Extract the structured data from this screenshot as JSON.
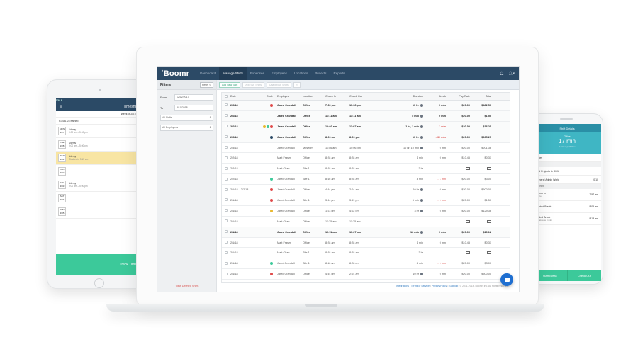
{
  "tablet": {
    "status": "iPad ●",
    "header_title": "Timesheets",
    "week_label": "Week of 2/27/2017",
    "earned": "$1,481.28 earned",
    "days": [
      {
        "day": "MON",
        "date": "2/27",
        "title": "Udemy",
        "sub": "9:00 am – 5:00 pm",
        "active": false
      },
      {
        "day": "TUE",
        "date": "2/28",
        "title": "Udemy",
        "sub": "9:00 am – 5:00 pm",
        "active": false
      },
      {
        "day": "WED",
        "date": "3/01",
        "title": "Udemy",
        "sub": "Clocked in 9:15 am",
        "active": true
      },
      {
        "day": "THU",
        "date": "3/02",
        "title": "",
        "sub": "",
        "active": false
      },
      {
        "day": "FRI",
        "date": "3/03",
        "title": "Udemy",
        "sub": "9:00 am – 5:00 pm",
        "active": false
      },
      {
        "day": "SAT",
        "date": "3/04",
        "title": "",
        "sub": "",
        "active": false
      },
      {
        "day": "SUN",
        "date": "3/05",
        "title": "",
        "sub": "",
        "active": false
      }
    ],
    "track_time": "Track Time"
  },
  "phone": {
    "header": "Shift Details",
    "hero_loc": "Office",
    "hero_value": "17 min",
    "hero_sub": "9 min of paid time",
    "notes_label": "Notes",
    "add_projects": "Add Projects to Shift",
    "project_name": "General Admin Work",
    "project_value": "0/10",
    "timeline_label": "Timeline",
    "events": [
      {
        "title": "Check In",
        "sub": "Office",
        "time": "7:57 am"
      },
      {
        "title": "Started Break",
        "sub": "",
        "time": "8:05 am"
      },
      {
        "title": "Ended Break",
        "sub": "Break was 8 min",
        "time": "8:13 am"
      }
    ],
    "start_break": "Start Break",
    "check_out": "Check Out"
  },
  "app": {
    "brand": "Boomr",
    "nav": [
      {
        "label": "Dashboard",
        "active": false
      },
      {
        "label": "Manage Shifts",
        "active": true
      },
      {
        "label": "Expenses",
        "active": false
      },
      {
        "label": "Employees",
        "active": false
      },
      {
        "label": "Locations",
        "active": false
      },
      {
        "label": "Projects",
        "active": false
      },
      {
        "label": "Reports",
        "active": false
      }
    ],
    "bell_icon": "bell-icon",
    "user_icon": "user-icon",
    "filters": {
      "label": "Filters",
      "reset": "Reset",
      "from_label": "From",
      "from_value": "12/12/2017",
      "to_label": "To",
      "to_value": "3/10/2018",
      "shifts_select": "All Shifts",
      "employees_select": "All Employees",
      "deleted_link": "View Deleted Shifts"
    },
    "toolbar": {
      "add_shift": "Add New Shift",
      "approve": "Approve Shifts",
      "unapprove": "Unapprove Shifts",
      "delete": "×"
    },
    "columns": [
      "Date",
      "Code",
      "Employee",
      "Location",
      "Check In",
      "Check Out",
      "Duration",
      "Break",
      "Pay Rate",
      "Total"
    ],
    "rows": [
      {
        "date": "2/6/18",
        "codes": [
          "#e04b4b"
        ],
        "emp": "Jared Crandall",
        "loc": "Office",
        "in": "7:30 pm",
        "out": "11:36 pm",
        "dur": "10 hr",
        "info": true,
        "brk": "0 min",
        "neg": false,
        "pay": "$20.00",
        "tot": "$482.50",
        "bold": true
      },
      {
        "date": "2/6/18",
        "codes": [],
        "emp": "Jared Crandall",
        "loc": "Office",
        "in": "11:11 am",
        "out": "11:11 am",
        "dur": "5 min",
        "info": true,
        "brk": "0 min",
        "neg": false,
        "pay": "$20.00",
        "tot": "$1.50",
        "bold": true
      },
      {
        "date": "2/6/18",
        "codes": [
          "#e8b830",
          "#3cc99a",
          "#e04b4b"
        ],
        "emp": "Jared Crandall",
        "loc": "Office",
        "in": "10:03 am",
        "out": "11:07 am",
        "dur": "1 hr, 2 min",
        "info": true,
        "brk": "- 1 min",
        "neg": true,
        "pay": "$20.00",
        "tot": "$36.25",
        "bold": true
      },
      {
        "date": "2/6/18",
        "codes": [
          "#2c4a66"
        ],
        "emp": "Jared Crandall",
        "loc": "Office",
        "in": "8:00 am",
        "out": "8:00 pm",
        "dur": "10 hr",
        "info": true,
        "brk": "- 30 min",
        "neg": true,
        "pay": "$20.00",
        "tot": "$285.25",
        "bold": true
      },
      {
        "date": "2/5/18",
        "codes": [],
        "emp": "Jared Crandall",
        "loc": "Museum",
        "in": "11:56 am",
        "out": "10:06 pm",
        "dur": "10 hr, 10 min",
        "info": true,
        "brk": "0 min",
        "neg": false,
        "pay": "$20.00",
        "tot": "$201.36",
        "bold": false
      },
      {
        "date": "2/2/18",
        "codes": [],
        "emp": "Matt Fraser",
        "loc": "Office",
        "in": "8:28 am",
        "out": "8:28 am",
        "dur": "1 min",
        "info": false,
        "brk": "0 min",
        "neg": false,
        "pay": "$10.45",
        "tot": "$0.31",
        "bold": false
      },
      {
        "date": "2/2/18",
        "codes": [],
        "emp": "Matt Chan",
        "loc": "Site 1",
        "in": "8:28 am",
        "out": "8:28 am",
        "dur": "3 hr",
        "info": false,
        "brk": "",
        "neg": false,
        "pay": "note",
        "tot": "note",
        "bold": false
      },
      {
        "date": "2/2/18",
        "codes": [
          "#3cc99a"
        ],
        "emp": "Jared Crandall",
        "loc": "Site 1",
        "in": "8:16 am",
        "out": "8:28 am",
        "dur": "8 min",
        "info": false,
        "brk": "- 1 min",
        "neg": true,
        "pay": "$20.00",
        "tot": "$3.00",
        "bold": false
      },
      {
        "date": "2/1/18 – 2/2/18",
        "codes": [
          "#e04b4b"
        ],
        "emp": "Jared Crandall",
        "loc": "Office",
        "in": "4:54 pm",
        "out": "2:04 am",
        "dur": "10 hr",
        "info": true,
        "brk": "0 min",
        "neg": false,
        "pay": "$20.00",
        "tot": "$500.00",
        "bold": false
      },
      {
        "date": "2/1/18",
        "codes": [
          "#e04b4b"
        ],
        "emp": "Jared Crandall",
        "loc": "Site 1",
        "in": "3:54 pm",
        "out": "3:59 pm",
        "dur": "5 min",
        "info": true,
        "brk": "- 1 min",
        "neg": true,
        "pay": "$20.00",
        "tot": "$1.50",
        "bold": false
      },
      {
        "date": "2/1/18",
        "codes": [
          "#e8b830"
        ],
        "emp": "Jared Crandall",
        "loc": "Office",
        "in": "1:03 pm",
        "out": "4:02 pm",
        "dur": "3 hr",
        "info": true,
        "brk": "0 min",
        "neg": false,
        "pay": "$20.00",
        "tot": "$129.36",
        "bold": false
      },
      {
        "date": "2/1/18",
        "codes": [],
        "emp": "Matt Chan",
        "loc": "Office",
        "in": "11:25 am",
        "out": "11:25 am",
        "dur": "",
        "info": false,
        "brk": "",
        "neg": false,
        "pay": "note",
        "tot": "note",
        "bold": false
      },
      {
        "date": "2/1/18",
        "codes": [],
        "emp": "Jared Crandall",
        "loc": "Office",
        "in": "11:11 am",
        "out": "11:27 am",
        "dur": "16 min",
        "info": true,
        "brk": "0 min",
        "neg": false,
        "pay": "$20.00",
        "tot": "$10.12",
        "bold": true
      },
      {
        "date": "2/1/18",
        "codes": [],
        "emp": "Matt Fraser",
        "loc": "Office",
        "in": "8:28 am",
        "out": "8:28 am",
        "dur": "1 min",
        "info": false,
        "brk": "0 min",
        "neg": false,
        "pay": "$10.45",
        "tot": "$0.31",
        "bold": false
      },
      {
        "date": "2/1/18",
        "codes": [],
        "emp": "Matt Chan",
        "loc": "Site 1",
        "in": "8:28 am",
        "out": "8:28 am",
        "dur": "3 hr",
        "info": false,
        "brk": "",
        "neg": false,
        "pay": "note",
        "tot": "note",
        "bold": false
      },
      {
        "date": "2/1/18",
        "codes": [
          "#3cc99a"
        ],
        "emp": "Jared Crandall",
        "loc": "Site 1",
        "in": "8:16 am",
        "out": "8:28 am",
        "dur": "8 min",
        "info": false,
        "brk": "- 1 min",
        "neg": true,
        "pay": "$20.00",
        "tot": "$3.00",
        "bold": false
      },
      {
        "date": "2/1/18",
        "codes": [
          "#e04b4b"
        ],
        "emp": "Jared Crandall",
        "loc": "Office",
        "in": "4:54 pm",
        "out": "2:04 am",
        "dur": "10 hr",
        "info": true,
        "brk": "0 min",
        "neg": false,
        "pay": "$20.00",
        "tot": "$500.00",
        "bold": false
      }
    ],
    "footer": {
      "links": [
        "Integrations",
        "Terms of Service",
        "Privacy Policy",
        "Support"
      ],
      "copyright": "© 2011-2018, Boomr, Inc. All rights reserved."
    },
    "chat_icon": "chat-icon"
  }
}
